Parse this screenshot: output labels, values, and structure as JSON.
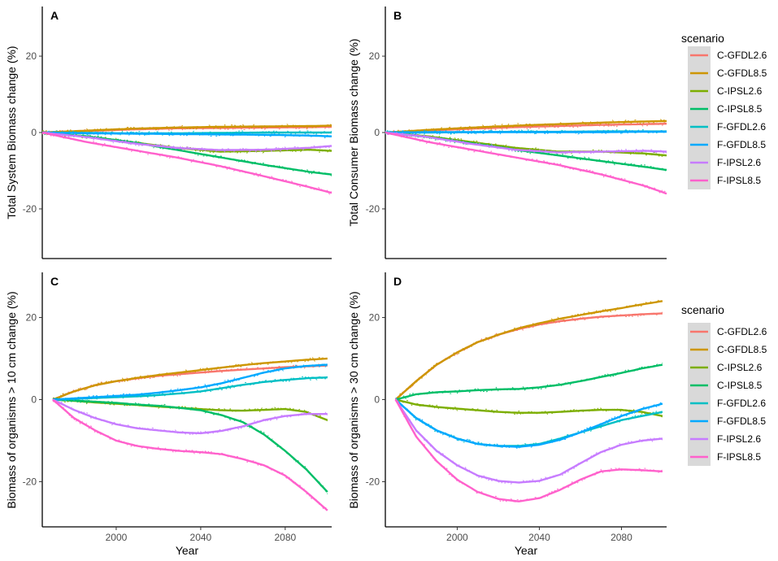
{
  "figure": {
    "legend_title": "scenario",
    "x_label": "Year",
    "series_names": [
      "C-GFDL2.6",
      "C-GFDL8.5",
      "C-IPSL2.6",
      "C-IPSL8.5",
      "F-GFDL2.6",
      "F-GFDL8.5",
      "F-IPSL2.6",
      "F-IPSL8.5"
    ],
    "series_colors": [
      "#F8766D",
      "#CD9600",
      "#7CAE00",
      "#00BE67",
      "#00BFC4",
      "#00A9FF",
      "#C77CFF",
      "#FF61CC"
    ]
  },
  "chart_data": [
    {
      "type": "line",
      "panel": "A",
      "ylabel": "Total System Biomass change (%)",
      "xlabel": "",
      "xlim": [
        1970,
        2100
      ],
      "ylim": [
        -33,
        33
      ],
      "xticks": [],
      "yticks": [
        -20,
        0,
        20
      ],
      "series": [
        {
          "name": "C-GFDL2.6",
          "x": [
            1970,
            1990,
            2010,
            2030,
            2050,
            2070,
            2090,
            2100
          ],
          "values": [
            0,
            0.4,
            0.8,
            1.1,
            1.2,
            1.3,
            1.4,
            1.5
          ]
        },
        {
          "name": "C-GFDL8.5",
          "x": [
            1970,
            1990,
            2010,
            2030,
            2050,
            2070,
            2090,
            2100
          ],
          "values": [
            0,
            0.5,
            1.0,
            1.3,
            1.5,
            1.6,
            1.7,
            1.8
          ]
        },
        {
          "name": "C-IPSL2.6",
          "x": [
            1970,
            1990,
            2010,
            2030,
            2050,
            2070,
            2090,
            2100
          ],
          "values": [
            0,
            -1.0,
            -2.5,
            -4.0,
            -5.0,
            -4.8,
            -4.5,
            -4.8
          ]
        },
        {
          "name": "C-IPSL8.5",
          "x": [
            1970,
            1990,
            2010,
            2030,
            2050,
            2070,
            2090,
            2100
          ],
          "values": [
            0,
            -1.0,
            -2.5,
            -4.5,
            -6.5,
            -8.5,
            -10.3,
            -11.0
          ]
        },
        {
          "name": "F-GFDL2.6",
          "x": [
            1970,
            1990,
            2010,
            2030,
            2050,
            2070,
            2090,
            2100
          ],
          "values": [
            0,
            -0.1,
            -0.2,
            -0.2,
            -0.1,
            0,
            0,
            0
          ]
        },
        {
          "name": "F-GFDL8.5",
          "x": [
            1970,
            1990,
            2010,
            2030,
            2050,
            2070,
            2090,
            2100
          ],
          "values": [
            0,
            -0.2,
            -0.3,
            -0.4,
            -0.5,
            -0.6,
            -0.8,
            -1.0
          ]
        },
        {
          "name": "F-IPSL2.6",
          "x": [
            1970,
            1990,
            2010,
            2030,
            2050,
            2070,
            2090,
            2100
          ],
          "values": [
            0,
            -1.2,
            -2.8,
            -4.0,
            -4.6,
            -4.5,
            -4.0,
            -3.5
          ]
        },
        {
          "name": "F-IPSL8.5",
          "x": [
            1970,
            1990,
            2010,
            2030,
            2050,
            2070,
            2090,
            2100
          ],
          "values": [
            0,
            -2.5,
            -4.5,
            -6.5,
            -8.8,
            -11.5,
            -14.3,
            -15.8
          ]
        }
      ]
    },
    {
      "type": "line",
      "panel": "B",
      "ylabel": "Total Consumer Biomass change (%)",
      "xlabel": "",
      "xlim": [
        1970,
        2100
      ],
      "ylim": [
        -33,
        33
      ],
      "xticks": [],
      "yticks": [
        -20,
        0,
        20
      ],
      "series": [
        {
          "name": "C-GFDL2.6",
          "x": [
            1970,
            1990,
            2010,
            2030,
            2050,
            2070,
            2090,
            2100
          ],
          "values": [
            0,
            0.5,
            1.0,
            1.4,
            1.7,
            2.0,
            2.2,
            2.3
          ]
        },
        {
          "name": "C-GFDL8.5",
          "x": [
            1970,
            1990,
            2010,
            2030,
            2050,
            2070,
            2090,
            2100
          ],
          "values": [
            0,
            0.7,
            1.3,
            1.8,
            2.2,
            2.6,
            2.9,
            3.0
          ]
        },
        {
          "name": "C-IPSL2.6",
          "x": [
            1970,
            1990,
            2010,
            2030,
            2050,
            2070,
            2090,
            2100
          ],
          "values": [
            0,
            -1.0,
            -2.5,
            -4.0,
            -5.0,
            -5.0,
            -5.5,
            -6.0
          ]
        },
        {
          "name": "C-IPSL8.5",
          "x": [
            1970,
            1990,
            2010,
            2030,
            2050,
            2070,
            2090,
            2100
          ],
          "values": [
            0,
            -1.2,
            -2.8,
            -4.5,
            -6.0,
            -7.5,
            -9.0,
            -9.8
          ]
        },
        {
          "name": "F-GFDL2.6",
          "x": [
            1970,
            1990,
            2010,
            2030,
            2050,
            2070,
            2090,
            2100
          ],
          "values": [
            0,
            0,
            0.1,
            0.2,
            0.2,
            0.3,
            0.3,
            0.3
          ]
        },
        {
          "name": "F-GFDL8.5",
          "x": [
            1970,
            1990,
            2010,
            2030,
            2050,
            2070,
            2090,
            2100
          ],
          "values": [
            0,
            0.1,
            0.1,
            0.1,
            0.1,
            0.1,
            0.2,
            0.2
          ]
        },
        {
          "name": "F-IPSL2.6",
          "x": [
            1970,
            1990,
            2010,
            2030,
            2050,
            2070,
            2090,
            2100
          ],
          "values": [
            0,
            -1.2,
            -3.0,
            -4.5,
            -5.2,
            -5.0,
            -4.8,
            -5.0
          ]
        },
        {
          "name": "F-IPSL8.5",
          "x": [
            1970,
            1990,
            2010,
            2030,
            2050,
            2070,
            2090,
            2100
          ],
          "values": [
            0,
            -2.5,
            -4.5,
            -6.5,
            -8.5,
            -11.0,
            -14.0,
            -16.0
          ]
        }
      ]
    },
    {
      "type": "line",
      "panel": "C",
      "ylabel": "Biomass of organisms > 10 cm change (%)",
      "xlabel": "Year",
      "xlim": [
        1965,
        2102
      ],
      "ylim": [
        -31,
        31
      ],
      "xticks": [
        2000,
        2040,
        2080
      ],
      "yticks": [
        -20,
        0,
        20
      ],
      "series": [
        {
          "name": "C-GFDL2.6",
          "x": [
            1970,
            1980,
            1990,
            2000,
            2010,
            2020,
            2030,
            2040,
            2050,
            2060,
            2070,
            2080,
            2090,
            2100
          ],
          "values": [
            0,
            2.0,
            3.5,
            4.5,
            5.2,
            5.8,
            6.2,
            6.6,
            7.0,
            7.3,
            7.6,
            7.9,
            8.1,
            8.3
          ]
        },
        {
          "name": "C-GFDL8.5",
          "x": [
            1970,
            1980,
            1990,
            2000,
            2010,
            2020,
            2030,
            2040,
            2050,
            2060,
            2070,
            2080,
            2090,
            2100
          ],
          "values": [
            0,
            2.0,
            3.5,
            4.5,
            5.3,
            6.0,
            6.6,
            7.2,
            7.8,
            8.4,
            8.9,
            9.3,
            9.7,
            10.0
          ]
        },
        {
          "name": "C-IPSL2.6",
          "x": [
            1970,
            1980,
            1990,
            2000,
            2010,
            2020,
            2030,
            2040,
            2050,
            2060,
            2070,
            2080,
            2090,
            2100
          ],
          "values": [
            0,
            -0.3,
            -0.7,
            -1.0,
            -1.3,
            -1.7,
            -2.0,
            -2.3,
            -2.6,
            -2.7,
            -2.5,
            -2.3,
            -3.0,
            -5.0
          ]
        },
        {
          "name": "C-IPSL8.5",
          "x": [
            1970,
            1980,
            1990,
            2000,
            2010,
            2020,
            2030,
            2040,
            2050,
            2060,
            2070,
            2080,
            2090,
            2100
          ],
          "values": [
            0,
            -0.2,
            -0.5,
            -0.8,
            -1.2,
            -1.5,
            -2.0,
            -2.6,
            -3.8,
            -5.5,
            -8.5,
            -12.5,
            -17.0,
            -22.5
          ]
        },
        {
          "name": "F-GFDL2.6",
          "x": [
            1970,
            1980,
            1990,
            2000,
            2010,
            2020,
            2030,
            2040,
            2050,
            2060,
            2070,
            2080,
            2090,
            2100
          ],
          "values": [
            0,
            0.2,
            0.4,
            0.6,
            0.8,
            1.1,
            1.5,
            2.0,
            2.8,
            3.6,
            4.3,
            4.8,
            5.2,
            5.4
          ]
        },
        {
          "name": "F-GFDL8.5",
          "x": [
            1970,
            1980,
            1990,
            2000,
            2010,
            2020,
            2030,
            2040,
            2050,
            2060,
            2070,
            2080,
            2090,
            2100
          ],
          "values": [
            0,
            0.3,
            0.6,
            0.9,
            1.2,
            1.7,
            2.3,
            3.0,
            4.0,
            5.3,
            6.6,
            7.6,
            8.2,
            8.5
          ]
        },
        {
          "name": "F-IPSL2.6",
          "x": [
            1970,
            1980,
            1990,
            2000,
            2010,
            2020,
            2030,
            2040,
            2050,
            2060,
            2070,
            2080,
            2090,
            2100
          ],
          "values": [
            0,
            -2.5,
            -4.5,
            -6.0,
            -7.0,
            -7.5,
            -8.0,
            -8.2,
            -7.6,
            -6.5,
            -5.0,
            -4.0,
            -3.5,
            -3.5
          ]
        },
        {
          "name": "F-IPSL8.5",
          "x": [
            1970,
            1980,
            1990,
            2000,
            2010,
            2020,
            2030,
            2040,
            2050,
            2060,
            2070,
            2080,
            2090,
            2100
          ],
          "values": [
            0,
            -4.5,
            -7.5,
            -10.0,
            -11.3,
            -12.0,
            -12.5,
            -12.8,
            -13.3,
            -14.5,
            -16.0,
            -18.5,
            -22.5,
            -27.0
          ]
        }
      ]
    },
    {
      "type": "line",
      "panel": "D",
      "ylabel": "Biomass of organisms > 30 cm change (%)",
      "xlabel": "Year",
      "xlim": [
        1965,
        2102
      ],
      "ylim": [
        -31,
        31
      ],
      "xticks": [
        2000,
        2040,
        2080
      ],
      "yticks": [
        -20,
        0,
        20
      ],
      "series": [
        {
          "name": "C-GFDL2.6",
          "x": [
            1970,
            1980,
            1990,
            2000,
            2010,
            2020,
            2030,
            2040,
            2050,
            2060,
            2070,
            2080,
            2090,
            2100
          ],
          "values": [
            0,
            4.5,
            8.5,
            11.5,
            14.0,
            15.8,
            17.2,
            18.3,
            19.1,
            19.7,
            20.2,
            20.5,
            20.8,
            21.0
          ]
        },
        {
          "name": "C-GFDL8.5",
          "x": [
            1970,
            1980,
            1990,
            2000,
            2010,
            2020,
            2030,
            2040,
            2050,
            2060,
            2070,
            2080,
            2090,
            2100
          ],
          "values": [
            0,
            4.5,
            8.5,
            11.5,
            14.0,
            15.8,
            17.4,
            18.6,
            19.7,
            20.6,
            21.5,
            22.3,
            23.2,
            24.0
          ]
        },
        {
          "name": "C-IPSL2.6",
          "x": [
            1970,
            1980,
            1990,
            2000,
            2010,
            2020,
            2030,
            2040,
            2050,
            2060,
            2070,
            2080,
            2090,
            2100
          ],
          "values": [
            0,
            -1.2,
            -1.8,
            -2.2,
            -2.6,
            -3.0,
            -3.2,
            -3.2,
            -3.0,
            -2.7,
            -2.5,
            -2.5,
            -3.0,
            -4.0
          ]
        },
        {
          "name": "C-IPSL8.5",
          "x": [
            1970,
            1980,
            1990,
            2000,
            2010,
            2020,
            2030,
            2040,
            2050,
            2060,
            2070,
            2080,
            2090,
            2100
          ],
          "values": [
            0,
            1.3,
            1.8,
            2.0,
            2.3,
            2.5,
            2.6,
            3.0,
            3.6,
            4.5,
            5.5,
            6.5,
            7.6,
            8.5
          ]
        },
        {
          "name": "F-GFDL2.6",
          "x": [
            1970,
            1980,
            1990,
            2000,
            2010,
            2020,
            2030,
            2040,
            2050,
            2060,
            2070,
            2080,
            2090,
            2100
          ],
          "values": [
            0,
            -4.5,
            -7.5,
            -9.5,
            -10.8,
            -11.3,
            -11.3,
            -10.8,
            -9.5,
            -8.0,
            -6.5,
            -5.0,
            -4.0,
            -3.0
          ]
        },
        {
          "name": "F-GFDL8.5",
          "x": [
            1970,
            1980,
            1990,
            2000,
            2010,
            2020,
            2030,
            2040,
            2050,
            2060,
            2070,
            2080,
            2090,
            2100
          ],
          "values": [
            0,
            -4.5,
            -7.5,
            -9.5,
            -10.8,
            -11.3,
            -11.5,
            -11.0,
            -9.8,
            -8.0,
            -6.0,
            -4.0,
            -2.3,
            -1.0
          ]
        },
        {
          "name": "F-IPSL2.6",
          "x": [
            1970,
            1980,
            1990,
            2000,
            2010,
            2020,
            2030,
            2040,
            2050,
            2060,
            2070,
            2080,
            2090,
            2100
          ],
          "values": [
            0,
            -7.5,
            -12.5,
            -16.0,
            -18.5,
            -19.8,
            -20.2,
            -19.8,
            -18.3,
            -15.5,
            -12.8,
            -11.0,
            -10.0,
            -9.5
          ]
        },
        {
          "name": "F-IPSL8.5",
          "x": [
            1970,
            1980,
            1990,
            2000,
            2010,
            2020,
            2030,
            2040,
            2050,
            2060,
            2070,
            2080,
            2090,
            2100
          ],
          "values": [
            0,
            -9.0,
            -15.0,
            -19.5,
            -22.5,
            -24.2,
            -24.8,
            -24.0,
            -22.0,
            -19.5,
            -17.5,
            -17.0,
            -17.2,
            -17.5
          ]
        }
      ]
    }
  ]
}
